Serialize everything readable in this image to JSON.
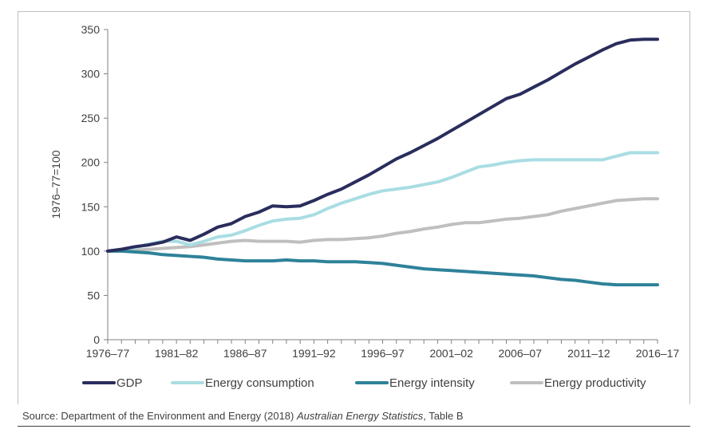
{
  "chart_data": {
    "type": "line",
    "title": "",
    "xlabel": "",
    "ylabel": "1976–77=100",
    "ylim": [
      0,
      350
    ],
    "yticks": [
      0,
      50,
      100,
      150,
      200,
      250,
      300,
      350
    ],
    "xtick_labels": [
      "1976–77",
      "1981–82",
      "1986–87",
      "1991–92",
      "1996–97",
      "2001–02",
      "2006–07",
      "2011–12",
      "2016–17"
    ],
    "grid": false,
    "legend_position": "bottom",
    "x": [
      "1976–77",
      "1977–78",
      "1978–79",
      "1979–80",
      "1980–81",
      "1981–82",
      "1982–83",
      "1983–84",
      "1984–85",
      "1985–86",
      "1986–87",
      "1987–88",
      "1988–89",
      "1989–90",
      "1990–91",
      "1991–92",
      "1992–93",
      "1993–94",
      "1994–95",
      "1995–96",
      "1996–97",
      "1997–98",
      "1998–99",
      "1999–00",
      "2000–01",
      "2001–02",
      "2002–03",
      "2003–04",
      "2004–05",
      "2005–06",
      "2006–07",
      "2007–08",
      "2008–09",
      "2009–10",
      "2010–11",
      "2011–12",
      "2012–13",
      "2013–14",
      "2014–15",
      "2015–16",
      "2016–17"
    ],
    "series": [
      {
        "name": "GDP",
        "color": "#2a2d5c",
        "values": [
          100,
          102,
          105,
          107,
          110,
          116,
          112,
          119,
          127,
          131,
          139,
          144,
          151,
          150,
          151,
          157,
          164,
          170,
          178,
          186,
          195,
          204,
          211,
          219,
          227,
          236,
          245,
          254,
          263,
          272,
          277,
          285,
          293,
          302,
          311,
          319,
          327,
          334,
          338,
          339,
          339
        ]
      },
      {
        "name": "Energy consumption",
        "color": "#a9dde3",
        "values": [
          100,
          102,
          104,
          108,
          111,
          111,
          107,
          111,
          116,
          118,
          123,
          129,
          134,
          136,
          137,
          141,
          148,
          154,
          159,
          164,
          168,
          170,
          172,
          175,
          178,
          183,
          189,
          195,
          197,
          200,
          202,
          203,
          203,
          203,
          203,
          203,
          203,
          207,
          211,
          211,
          211
        ]
      },
      {
        "name": "Energy intensity",
        "color": "#2e8299",
        "values": [
          100,
          100,
          99,
          98,
          96,
          95,
          94,
          93,
          91,
          90,
          89,
          89,
          89,
          90,
          89,
          89,
          88,
          88,
          88,
          87,
          86,
          84,
          82,
          80,
          79,
          78,
          77,
          76,
          75,
          74,
          73,
          72,
          70,
          68,
          67,
          65,
          63,
          62,
          62,
          62,
          62
        ]
      },
      {
        "name": "Energy productivity",
        "color": "#bfbfbf",
        "values": [
          100,
          100,
          101,
          102,
          103,
          104,
          105,
          107,
          109,
          111,
          112,
          111,
          111,
          111,
          110,
          112,
          113,
          113,
          114,
          115,
          117,
          120,
          122,
          125,
          127,
          130,
          132,
          132,
          134,
          136,
          137,
          139,
          141,
          145,
          148,
          151,
          154,
          157,
          158,
          159,
          159
        ]
      }
    ]
  },
  "source": {
    "prefix": "Source: Department of the Environment and Energy (2018) ",
    "title": "Australian Energy Statistics",
    "suffix": ", Table B"
  }
}
